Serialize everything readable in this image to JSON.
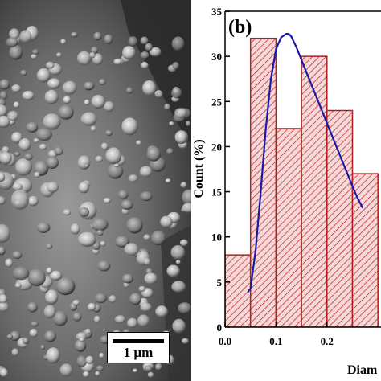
{
  "sem_image": {
    "scale_bar_label": "1 µm"
  },
  "chart_data": {
    "type": "bar",
    "panel_label": "(b)",
    "xlabel": "Diam",
    "ylabel": "Count (%)",
    "bin_edges": [
      0.0,
      0.05,
      0.1,
      0.15,
      0.2,
      0.25,
      0.3
    ],
    "values": [
      8,
      32,
      22,
      30,
      24,
      17
    ],
    "xlim": [
      0.0,
      0.3
    ],
    "ylim": [
      0,
      35
    ],
    "x_ticks": [
      "0.0",
      "0.1",
      "0.2"
    ],
    "x_tick_values": [
      0.0,
      0.1,
      0.2
    ],
    "y_ticks": [
      0,
      5,
      10,
      15,
      20,
      25,
      30,
      35
    ],
    "bar_fill": "#f7d8d8",
    "bar_hatch": "#b02020",
    "bar_edge": "#b02020",
    "fit_curve": {
      "color": "#1a1aa8",
      "x": [
        0.045,
        0.05,
        0.06,
        0.07,
        0.08,
        0.09,
        0.1,
        0.11,
        0.12,
        0.125,
        0.13,
        0.14,
        0.15,
        0.16,
        0.17,
        0.18,
        0.19,
        0.2,
        0.21,
        0.22,
        0.23,
        0.24,
        0.25,
        0.26,
        0.27
      ],
      "y": [
        3.9,
        4.3,
        8.5,
        15.0,
        22.0,
        27.5,
        30.8,
        32.1,
        32.5,
        32.5,
        32.2,
        31.0,
        29.6,
        28.2,
        26.8,
        25.4,
        24.0,
        22.6,
        21.2,
        19.8,
        18.4,
        17.0,
        15.6,
        14.3,
        13.2
      ]
    }
  }
}
